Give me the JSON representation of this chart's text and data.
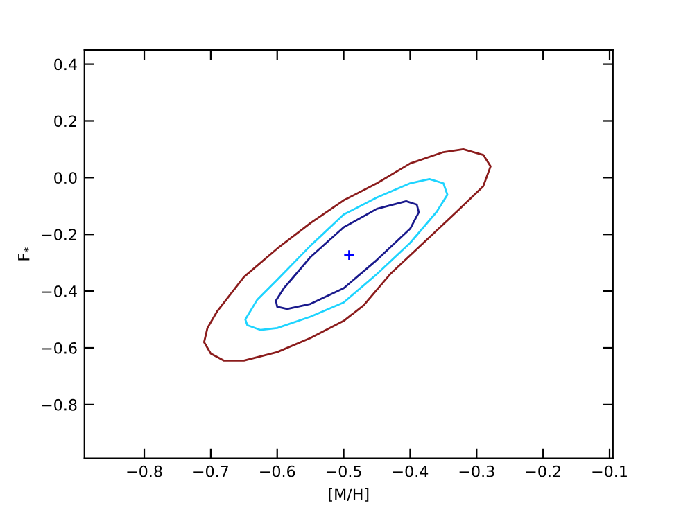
{
  "chart_data": {
    "type": "scatter",
    "xlabel": "[M/H]",
    "ylabel": "F$_{*}$",
    "xlim": [
      -0.89,
      -0.095
    ],
    "ylim": [
      -0.99,
      0.45
    ],
    "xticks": [
      {
        "value": -0.8,
        "label": "−0.8"
      },
      {
        "value": -0.7,
        "label": "−0.7"
      },
      {
        "value": -0.6,
        "label": "−0.6"
      },
      {
        "value": -0.5,
        "label": "−0.5"
      },
      {
        "value": -0.4,
        "label": "−0.4"
      },
      {
        "value": -0.3,
        "label": "−0.3"
      },
      {
        "value": -0.2,
        "label": "−0.2"
      },
      {
        "value": -0.1,
        "label": "−0.1"
      }
    ],
    "yticks": [
      {
        "value": -0.8,
        "label": "−0.8"
      },
      {
        "value": -0.6,
        "label": "−0.6"
      },
      {
        "value": -0.4,
        "label": "−0.4"
      },
      {
        "value": -0.2,
        "label": "−0.2"
      },
      {
        "value": 0.0,
        "label": "0.0"
      },
      {
        "value": 0.2,
        "label": "0.2"
      },
      {
        "value": 0.4,
        "label": "0.4"
      }
    ],
    "grid": false,
    "legend": false,
    "series": [
      {
        "color": "#0000ff",
        "marker": "cross",
        "x": [
          -0.492
        ],
        "values": [
          -0.273
        ]
      }
    ]
  }
}
